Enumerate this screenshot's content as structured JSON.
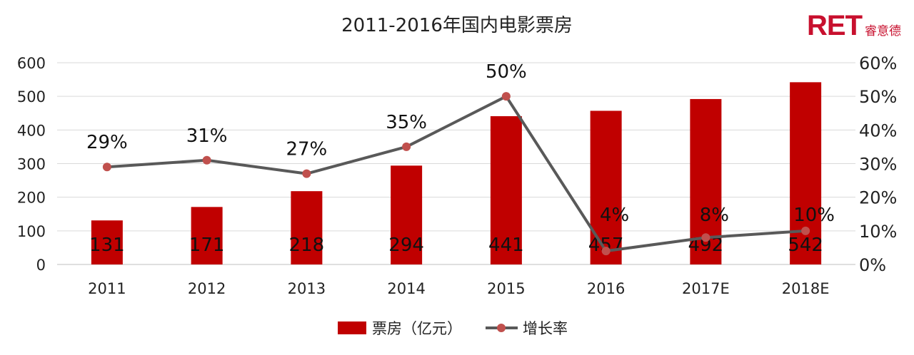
{
  "logo": {
    "mark": "RET",
    "text": "睿意德"
  },
  "colors": {
    "bar": "#c00000",
    "line": "#595959",
    "marker": "#c0504d",
    "grid": "#d9d9d9"
  },
  "chart_data": {
    "type": "bar",
    "title": "2011-2016年国内电影票房",
    "categories": [
      "2011",
      "2012",
      "2013",
      "2014",
      "2015",
      "2016",
      "2017E",
      "2018E"
    ],
    "series": [
      {
        "name": "票房（亿元）",
        "type": "bar",
        "axis": "left",
        "values": [
          131,
          171,
          218,
          294,
          441,
          457,
          492,
          542
        ],
        "labels": [
          "131",
          "171",
          "218",
          "294",
          "441",
          "457",
          "492",
          "542"
        ]
      },
      {
        "name": "增长率",
        "type": "line",
        "axis": "right",
        "values": [
          29,
          31,
          27,
          35,
          50,
          4,
          8,
          10
        ],
        "labels": [
          "29%",
          "31%",
          "27%",
          "35%",
          "50%",
          "4%",
          "8%",
          "10%"
        ]
      }
    ],
    "y_left": {
      "min": 0,
      "max": 600,
      "ticks": [
        "0",
        "100",
        "200",
        "300",
        "400",
        "500",
        "600"
      ]
    },
    "y_right": {
      "min": 0,
      "max": 60,
      "ticks": [
        "0%",
        "10%",
        "20%",
        "30%",
        "40%",
        "50%",
        "60%"
      ]
    },
    "grid": true,
    "legend": "bottom"
  }
}
